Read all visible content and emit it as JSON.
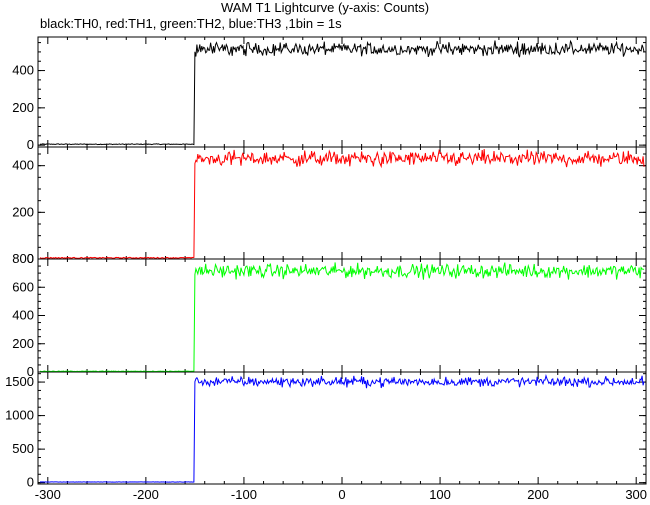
{
  "title": "WAM T1 Lightcurve (y-axis: Counts)",
  "subtitle": "black:TH0, red:TH1, green:TH2, blue:TH3 ,1bin = 1s",
  "colors": {
    "TH0": "#000000",
    "TH1": "#ff0000",
    "TH2": "#00ff00",
    "TH3": "#0000ff"
  },
  "chart_data": {
    "type": "line",
    "x_range": [
      -310,
      310
    ],
    "x_ticks": [
      -300,
      -200,
      -100,
      0,
      100,
      200,
      300
    ],
    "transition_x": -150,
    "panels": [
      {
        "name": "TH0",
        "color": "#000000",
        "ylim": [
          -10,
          580
        ],
        "yticks": [
          0,
          200,
          400
        ],
        "pre_level": 5,
        "post_level": 515,
        "noise": 22
      },
      {
        "name": "TH1",
        "color": "#ff0000",
        "ylim": [
          0,
          480
        ],
        "yticks": [
          0,
          200,
          400
        ],
        "pre_level": 5,
        "post_level": 430,
        "noise": 20
      },
      {
        "name": "TH2",
        "color": "#00ff00",
        "ylim": [
          0,
          800
        ],
        "yticks": [
          0,
          200,
          400,
          600,
          800
        ],
        "pre_level": 5,
        "post_level": 715,
        "noise": 30
      },
      {
        "name": "TH3",
        "color": "#0000ff",
        "ylim": [
          -20,
          1650
        ],
        "yticks": [
          0,
          500,
          1000,
          1500
        ],
        "pre_level": 10,
        "post_level": 1505,
        "noise": 45
      }
    ]
  }
}
